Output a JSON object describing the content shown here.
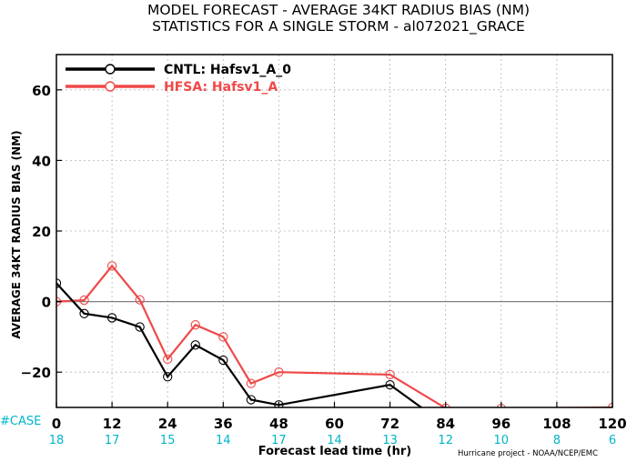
{
  "title_line1": "MODEL FORECAST - AVERAGE 34KT RADIUS BIAS (NM)",
  "title_line2": "STATISTICS FOR A SINGLE STORM - al072021_GRACE",
  "credit": "Hurricane project - NOAA/NCEP/EMC",
  "case_label": "#CASE",
  "case_counts": [
    "18",
    "17",
    "15",
    "14",
    "17",
    "14",
    "13",
    "12",
    "10",
    "8",
    "6"
  ],
  "case_hours": [
    0,
    12,
    24,
    36,
    48,
    60,
    72,
    84,
    96,
    108,
    120
  ],
  "colors": {
    "cntl": "#000000",
    "hfsa": "#f04848",
    "case": "#00b5c8",
    "zero_line": "#7f7f7f"
  },
  "chart_data": {
    "type": "line",
    "title": "MODEL FORECAST - AVERAGE 34KT RADIUS BIAS (NM)",
    "subtitle": "STATISTICS FOR A SINGLE STORM - al072021_GRACE",
    "xlabel": "Forecast lead time (hr)",
    "ylabel": "AVERAGE 34KT RADIUS BIAS (NM)",
    "xlim": [
      0,
      120
    ],
    "ylim": [
      -30,
      70
    ],
    "xticks": [
      0,
      12,
      24,
      36,
      48,
      60,
      72,
      84,
      96,
      108,
      120
    ],
    "yticks": [
      -20,
      0,
      20,
      40,
      60
    ],
    "ytick_labels": [
      "−20",
      "0",
      "20",
      "40",
      "60"
    ],
    "grid": true,
    "legend_position": "top-left",
    "series": [
      {
        "name": "CNTL: Hafsv1_A_0",
        "color": "#000000",
        "x": [
          0,
          6,
          12,
          18,
          24,
          30,
          36,
          42,
          48,
          72,
          84
        ],
        "y": [
          5.2,
          -3.4,
          -4.6,
          -7.2,
          -21.3,
          -12.3,
          -16.6,
          -27.8,
          -29.3,
          -23.6,
          -35.0
        ]
      },
      {
        "name": "HFSA: Hafsv1_A",
        "color": "#f04848",
        "x": [
          0,
          6,
          12,
          18,
          24,
          30,
          36,
          42,
          48,
          72,
          84,
          96,
          120
        ],
        "y": [
          0,
          0.4,
          10.1,
          0.5,
          -16.3,
          -6.6,
          -10.0,
          -23.2,
          -20.0,
          -20.7,
          -30.2,
          -30.3,
          -30.0
        ]
      }
    ]
  }
}
